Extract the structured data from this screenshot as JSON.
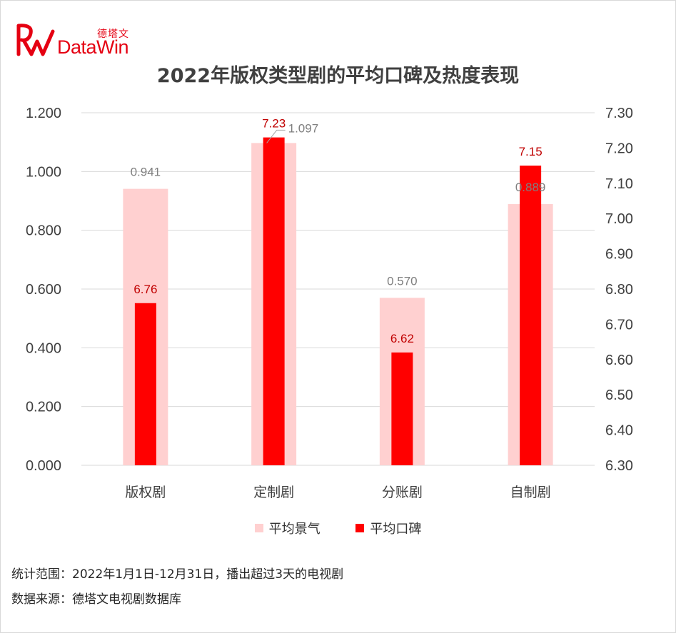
{
  "logo": {
    "cn_text": "德塔文",
    "en_text": "DataWin"
  },
  "chart_data": {
    "type": "bar",
    "title": "2022年版权类型剧的平均口碑及热度表现",
    "categories": [
      "版权剧",
      "定制剧",
      "分账剧",
      "自制剧"
    ],
    "series": [
      {
        "name": "平均景气",
        "axis": "left",
        "values": [
          0.941,
          1.097,
          0.57,
          0.889
        ],
        "labels": [
          "0.941",
          "1.097",
          "0.570",
          "0.889"
        ],
        "color": "#ffd0d0",
        "label_color": "#7f7f7f"
      },
      {
        "name": "平均口碑",
        "axis": "right",
        "values": [
          6.76,
          7.23,
          6.62,
          7.15
        ],
        "labels": [
          "6.76",
          "7.23",
          "6.62",
          "7.15"
        ],
        "color": "#ff0000",
        "label_color": "#c00000"
      }
    ],
    "left_axis": {
      "ylim": [
        0,
        1.2
      ],
      "ticks": [
        "0.000",
        "0.200",
        "0.400",
        "0.600",
        "0.800",
        "1.000",
        "1.200"
      ]
    },
    "right_axis": {
      "ylim": [
        6.3,
        7.3
      ],
      "ticks": [
        "6.30",
        "6.40",
        "6.50",
        "6.60",
        "6.70",
        "6.80",
        "6.90",
        "7.00",
        "7.10",
        "7.20",
        "7.30"
      ]
    },
    "grid": true,
    "legend_position": "bottom"
  },
  "footnotes": {
    "scope": "统计范围：2022年1月1日-12月31日，播出超过3天的电视剧",
    "source": "数据来源：德塔文电视剧数据库"
  }
}
